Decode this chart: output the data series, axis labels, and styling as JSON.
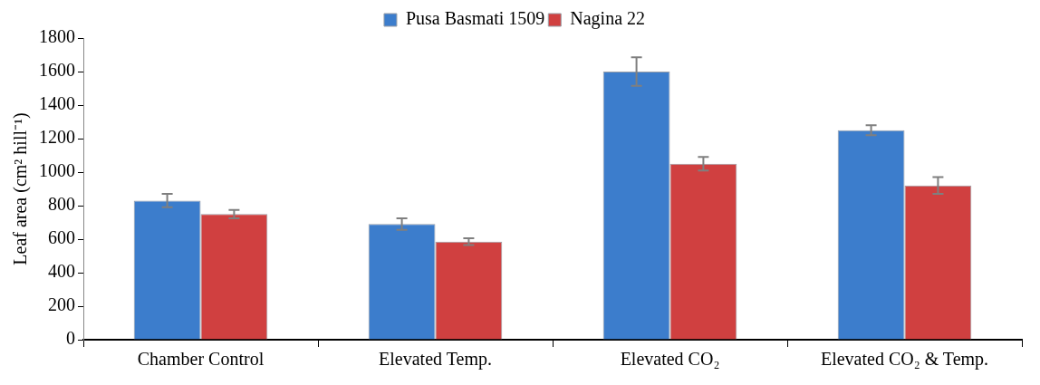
{
  "chart_data": {
    "type": "bar",
    "ylabel": "Leaf area (cm² hill⁻¹)",
    "categories": [
      "Chamber Control",
      "Elevated Temp.",
      "Elevated CO₂",
      "Elevated CO₂ & Temp."
    ],
    "series": [
      {
        "name": "Pusa Basmati 1509",
        "color": "#3c7dcc",
        "values": [
          830,
          690,
          1600,
          1250
        ],
        "errors": [
          40,
          35,
          85,
          30
        ]
      },
      {
        "name": "Nagina 22",
        "color": "#d04040",
        "values": [
          750,
          585,
          1050,
          920
        ],
        "errors": [
          25,
          20,
          40,
          50
        ]
      }
    ],
    "ylim": [
      0,
      1800
    ],
    "yticks": [
      0,
      200,
      400,
      600,
      800,
      1000,
      1200,
      1400,
      1600,
      1800
    ],
    "grid": false,
    "legend": "top"
  }
}
